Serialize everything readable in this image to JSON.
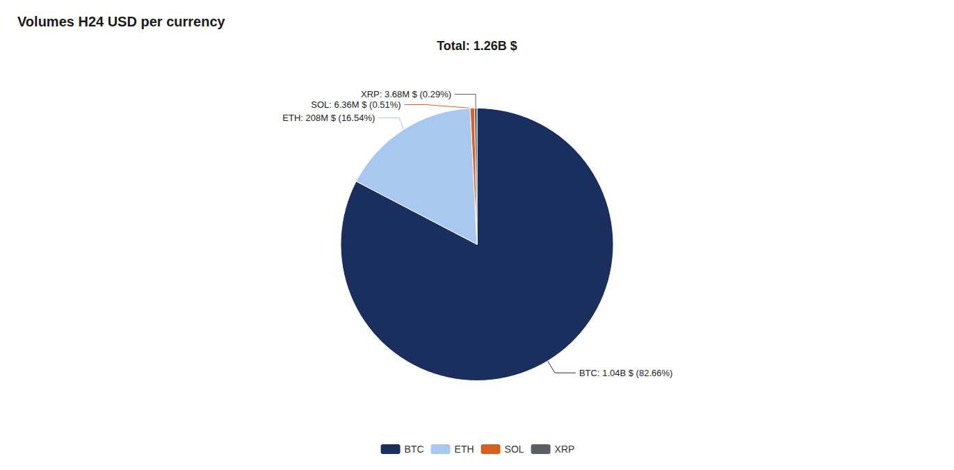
{
  "chart_data": {
    "type": "pie",
    "title": "Volumes H24 USD per currency",
    "subtitle": "Total: 1.26B $",
    "categories": [
      "BTC",
      "ETH",
      "SOL",
      "XRP"
    ],
    "values": [
      82.66,
      16.54,
      0.51,
      0.29
    ],
    "value_labels": [
      "BTC: 1.04B $ (82.66%)",
      "ETH: 208M $ (16.54%)",
      "SOL: 6.36M $ (0.51%)",
      "XRP: 3.68M $ (0.29%)"
    ],
    "colors": [
      "#1a2f5e",
      "#a8c8f0",
      "#d95f1e",
      "#5a5f66"
    ],
    "data_labels": true,
    "legend": "bottom"
  }
}
